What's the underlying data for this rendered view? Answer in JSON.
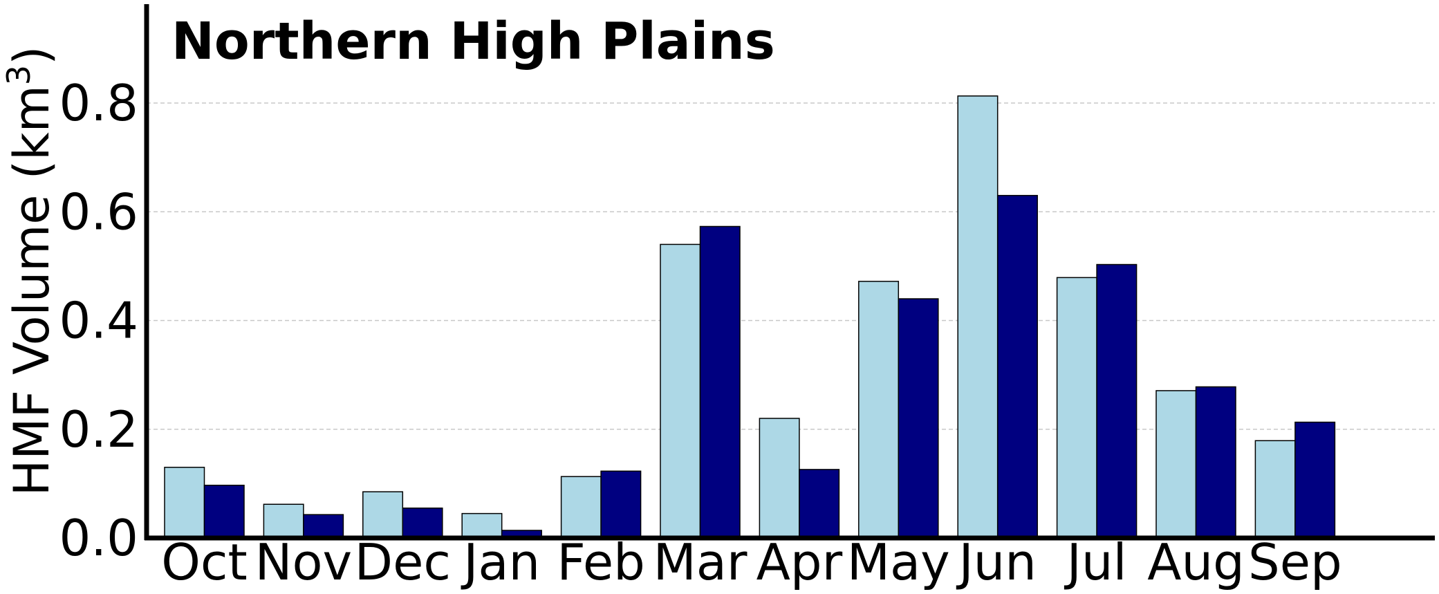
{
  "chart_data": {
    "type": "bar",
    "title": "Northern High Plains",
    "xlabel": "",
    "ylabel": "HMF Volume (km",
    "ylabel_sup": "3",
    "ylabel_close": ")",
    "ylim": [
      0,
      0.98
    ],
    "yticks": [
      "0.0",
      "0.2",
      "0.4",
      "0.6",
      "0.8"
    ],
    "ytick_values": [
      0,
      0.2,
      0.4,
      0.6,
      0.8
    ],
    "grid": "y-dashed",
    "categories": [
      "Oct",
      "Nov",
      "Dec",
      "Jan",
      "Feb",
      "Mar",
      "Apr",
      "May",
      "Jun",
      "Jul",
      "Aug",
      "Sep"
    ],
    "series": [
      {
        "color": "#add8e6",
        "values": [
          0.13,
          0.062,
          0.085,
          0.045,
          0.113,
          0.54,
          0.22,
          0.472,
          0.813,
          0.479,
          0.271,
          0.179
        ]
      },
      {
        "color": "#000080",
        "values": [
          0.097,
          0.043,
          0.055,
          0.014,
          0.123,
          0.573,
          0.126,
          0.44,
          0.63,
          0.503,
          0.278,
          0.213
        ]
      }
    ]
  }
}
